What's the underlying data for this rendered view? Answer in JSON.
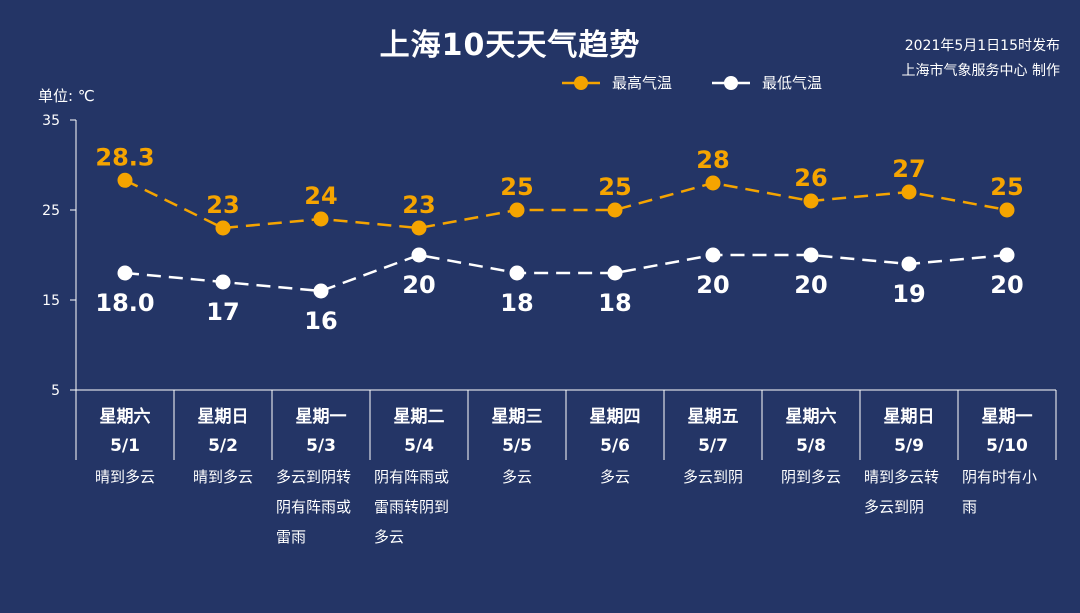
{
  "title": "上海10天天气趋势",
  "published": "2021年5月1日15时发布",
  "publisher": "上海市气象服务中心 制作",
  "unit_label": "单位: ℃",
  "colors": {
    "background": "#243566",
    "high": "#f5a400",
    "low": "#ffffff"
  },
  "legend": [
    {
      "name": "最高气温",
      "color": "#f5a400",
      "marker": "circle"
    },
    {
      "name": "最低气温",
      "color": "#ffffff",
      "marker": "circle"
    }
  ],
  "chart_data": {
    "type": "line",
    "title": "上海10天天气趋势",
    "ylabel": "单位: ℃",
    "ylim": [
      5,
      35
    ],
    "yticks": [
      35,
      25,
      15,
      5
    ],
    "categories": [
      {
        "weekday": "星期六",
        "date": "5/1"
      },
      {
        "weekday": "星期日",
        "date": "5/2"
      },
      {
        "weekday": "星期一",
        "date": "5/3"
      },
      {
        "weekday": "星期二",
        "date": "5/4"
      },
      {
        "weekday": "星期三",
        "date": "5/5"
      },
      {
        "weekday": "星期四",
        "date": "5/6"
      },
      {
        "weekday": "星期五",
        "date": "5/7"
      },
      {
        "weekday": "星期六",
        "date": "5/8"
      },
      {
        "weekday": "星期日",
        "date": "5/9"
      },
      {
        "weekday": "星期一",
        "date": "5/10"
      }
    ],
    "series": [
      {
        "name": "最高气温",
        "values": [
          28.3,
          23,
          24,
          23,
          25,
          25,
          28,
          26,
          27,
          25
        ],
        "labels": [
          "28.3",
          "23",
          "24",
          "23",
          "25",
          "25",
          "28",
          "26",
          "27",
          "25"
        ]
      },
      {
        "name": "最低气温",
        "values": [
          18.0,
          17,
          16,
          20,
          18,
          18,
          20,
          20,
          19,
          20
        ],
        "labels": [
          "18.0",
          "17",
          "16",
          "20",
          "18",
          "18",
          "20",
          "20",
          "19",
          "20"
        ]
      }
    ],
    "conditions": [
      [
        "晴到多云"
      ],
      [
        "晴到多云"
      ],
      [
        "多云到阴转",
        "阴有阵雨或",
        "雷雨"
      ],
      [
        "阴有阵雨或",
        "雷雨转阴到",
        "多云"
      ],
      [
        "多云"
      ],
      [
        "多云"
      ],
      [
        "多云到阴"
      ],
      [
        "阴到多云"
      ],
      [
        "晴到多云转",
        "多云到阴"
      ],
      [
        "阴有时有小",
        "雨"
      ]
    ],
    "grid": false,
    "legend_position": "top"
  }
}
